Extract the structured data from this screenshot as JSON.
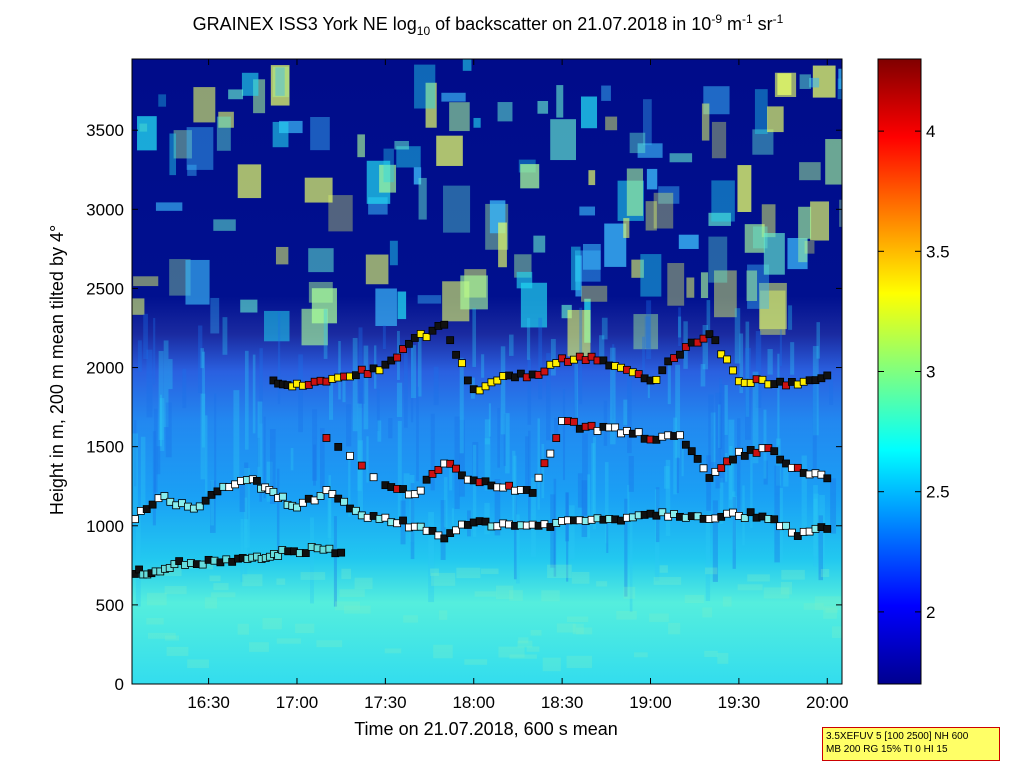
{
  "chart_data": {
    "type": "heatmap",
    "title": {
      "pre": "GRAINEX ISS3 York NE log",
      "sub": "10",
      "mid": " of backscatter on 21.07.2018 in 10",
      "sup1": "-9",
      "unit1": " m",
      "sup2": "-1",
      "unit2": " sr",
      "sup3": "-1"
    },
    "xlabel": "Time on 21.07.2018, 600 s mean",
    "ylabel": "Height in m, 200 m mean tilted by 4°",
    "x_ticks": [
      "16:30",
      "17:00",
      "17:30",
      "18:00",
      "18:30",
      "19:00",
      "19:30",
      "20:00"
    ],
    "x_tick_minutes": [
      990,
      1020,
      1050,
      1080,
      1110,
      1140,
      1170,
      1200
    ],
    "xlim_minutes": [
      964,
      1205
    ],
    "y_ticks": [
      0,
      500,
      1000,
      1500,
      2000,
      2500,
      3000,
      3500
    ],
    "ylim": [
      0,
      3950
    ],
    "colorbar": {
      "colormap": "jet",
      "range": [
        1.7,
        4.3
      ],
      "ticks": [
        "2",
        "2.5",
        "3",
        "3.5",
        "4"
      ],
      "tick_values": [
        2,
        2.5,
        3,
        3.5,
        4
      ]
    },
    "layers": [
      {
        "symbol": "square",
        "series": "lowest layer",
        "points": [
          [
            965,
            700
          ],
          [
            972,
            720
          ],
          [
            980,
            760
          ],
          [
            990,
            770
          ],
          [
            1000,
            780
          ],
          [
            1008,
            790
          ],
          [
            1015,
            830
          ],
          [
            1025,
            850
          ],
          [
            1035,
            830
          ]
        ]
      },
      {
        "symbol": "square",
        "series": "boundary layer top",
        "points": [
          [
            965,
            1060
          ],
          [
            975,
            1180
          ],
          [
            985,
            1100
          ],
          [
            995,
            1250
          ],
          [
            1005,
            1280
          ],
          [
            1012,
            1200
          ],
          [
            1020,
            1120
          ],
          [
            1030,
            1210
          ],
          [
            1040,
            1080
          ],
          [
            1050,
            1040
          ],
          [
            1060,
            1000
          ],
          [
            1070,
            940
          ],
          [
            1080,
            1020
          ],
          [
            1090,
            1010
          ],
          [
            1100,
            1000
          ],
          [
            1110,
            1020
          ],
          [
            1120,
            1040
          ],
          [
            1130,
            1050
          ],
          [
            1140,
            1080
          ],
          [
            1150,
            1070
          ],
          [
            1160,
            1060
          ],
          [
            1170,
            1070
          ],
          [
            1180,
            1060
          ],
          [
            1190,
            950
          ],
          [
            1200,
            980
          ]
        ]
      },
      {
        "symbol": "square",
        "series": "residual layer",
        "points": [
          [
            1030,
            1550
          ],
          [
            1050,
            1250
          ],
          [
            1060,
            1200
          ],
          [
            1070,
            1400
          ],
          [
            1080,
            1270
          ],
          [
            1090,
            1250
          ],
          [
            1100,
            1200
          ],
          [
            1110,
            1650
          ],
          [
            1120,
            1620
          ],
          [
            1130,
            1600
          ],
          [
            1140,
            1560
          ],
          [
            1150,
            1560
          ],
          [
            1160,
            1300
          ],
          [
            1170,
            1450
          ],
          [
            1180,
            1490
          ],
          [
            1190,
            1350
          ],
          [
            1200,
            1300
          ]
        ]
      },
      {
        "symbol": "square",
        "series": "upper layer",
        "points": [
          [
            1012,
            1900
          ],
          [
            1020,
            1880
          ],
          [
            1030,
            1920
          ],
          [
            1040,
            1960
          ],
          [
            1050,
            2000
          ],
          [
            1060,
            2180
          ],
          [
            1070,
            2260
          ],
          [
            1080,
            1850
          ],
          [
            1090,
            1950
          ],
          [
            1100,
            1950
          ],
          [
            1110,
            2050
          ],
          [
            1120,
            2070
          ],
          [
            1130,
            2000
          ],
          [
            1140,
            1900
          ],
          [
            1150,
            2100
          ],
          [
            1160,
            2220
          ],
          [
            1170,
            1920
          ],
          [
            1180,
            1900
          ],
          [
            1190,
            1900
          ],
          [
            1200,
            1950
          ]
        ]
      }
    ]
  },
  "info_box": {
    "line1": "3.5XEFUV 5 [100 2500] NH 600",
    "line2": "MB 200 RG 15% TI 0 HI 15"
  }
}
